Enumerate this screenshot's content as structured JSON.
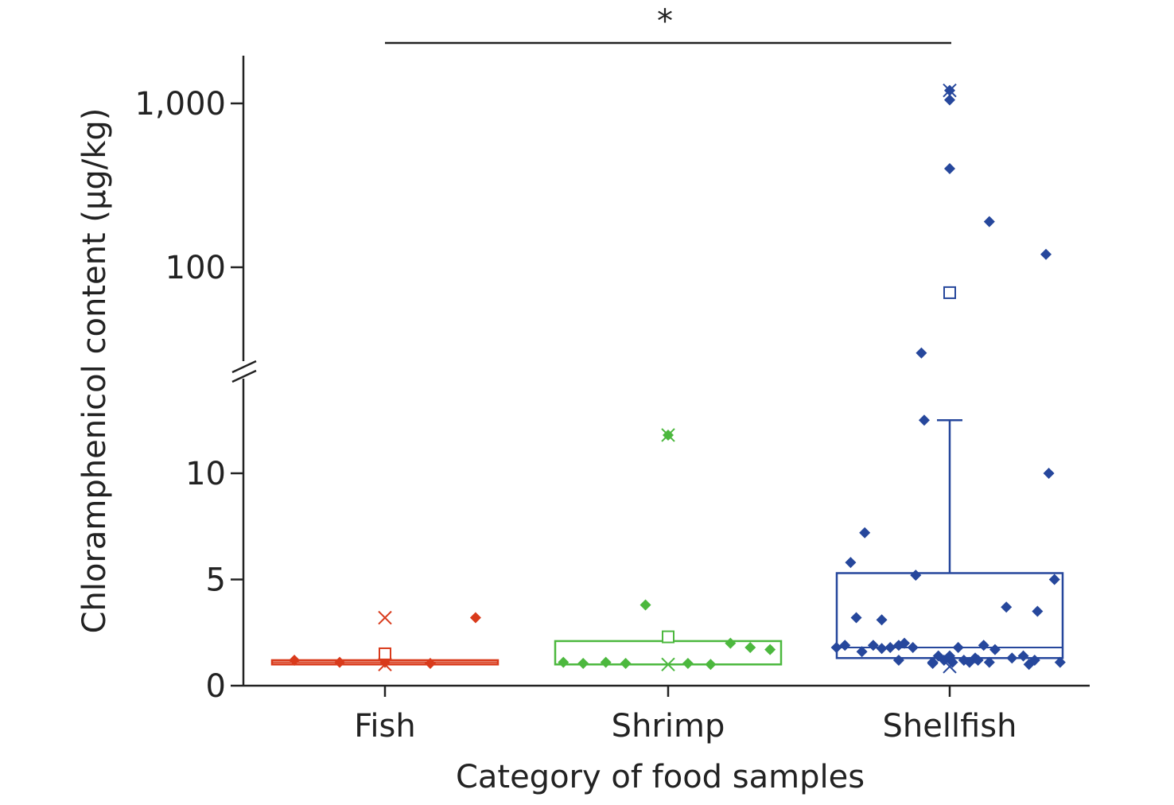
{
  "chart_data": {
    "type": "box-scatter",
    "xlabel": "Category of food samples",
    "ylabel": "Chloramphenicol content (µg/kg)",
    "y_scale": "broken axis: linear 0–14 below the break, log 10–2,000 above the break",
    "y_ticks": [
      {
        "value": 0,
        "label": "0"
      },
      {
        "value": 5,
        "label": "5"
      },
      {
        "value": 10,
        "label": "10"
      },
      {
        "value": 100,
        "label": "100"
      },
      {
        "value": 1000,
        "label": "1,000"
      }
    ],
    "significance": {
      "label": "*",
      "from": "Fish",
      "to": "Shellfish"
    },
    "grid": false,
    "legend": "none",
    "categories": [
      "Fish",
      "Shrimp",
      "Shellfish"
    ],
    "series": [
      {
        "category": "Fish",
        "color": "#d93a1b",
        "box": {
          "q1": 1.0,
          "median": 1.1,
          "q3": 1.2,
          "whisker_low": 1.0,
          "whisker_high": 1.2
        },
        "mean": 1.5,
        "extremes": [
          3.2,
          1.0
        ],
        "points": [
          {
            "dx": -0.32,
            "y": 1.2
          },
          {
            "dx": -0.16,
            "y": 1.1
          },
          {
            "dx": 0.0,
            "y": 1.1
          },
          {
            "dx": 0.16,
            "y": 1.05
          },
          {
            "dx": 0.32,
            "y": 3.2
          }
        ]
      },
      {
        "category": "Shrimp",
        "color": "#4cb83e",
        "box": {
          "q1": 1.0,
          "median": 1.0,
          "q3": 2.1,
          "whisker_low": 1.0,
          "whisker_high": 2.1
        },
        "mean": 2.3,
        "extremes": [
          11.8,
          1.0
        ],
        "points": [
          {
            "dx": -0.37,
            "y": 1.1
          },
          {
            "dx": -0.3,
            "y": 1.05
          },
          {
            "dx": -0.22,
            "y": 1.1
          },
          {
            "dx": -0.15,
            "y": 1.05
          },
          {
            "dx": -0.08,
            "y": 3.8
          },
          {
            "dx": 0.0,
            "y": 11.8
          },
          {
            "dx": 0.07,
            "y": 1.05
          },
          {
            "dx": 0.15,
            "y": 1.0
          },
          {
            "dx": 0.22,
            "y": 2.0
          },
          {
            "dx": 0.29,
            "y": 1.8
          },
          {
            "dx": 0.36,
            "y": 1.7
          }
        ]
      },
      {
        "category": "Shellfish",
        "color": "#26479c",
        "box": {
          "q1": 1.3,
          "median": 1.8,
          "q3": 5.3,
          "whisker_low": 1.3,
          "whisker_high": 12.5
        },
        "mean": 70,
        "extremes": [
          1200,
          0.9
        ],
        "points": [
          {
            "dx": 0.0,
            "y": 1200
          },
          {
            "dx": 0.0,
            "y": 1050
          },
          {
            "dx": 0.0,
            "y": 400
          },
          {
            "dx": 0.14,
            "y": 190
          },
          {
            "dx": 0.34,
            "y": 120
          },
          {
            "dx": -0.1,
            "y": 30
          },
          {
            "dx": -0.09,
            "y": 12.5
          },
          {
            "dx": 0.35,
            "y": 10.0
          },
          {
            "dx": -0.3,
            "y": 7.2
          },
          {
            "dx": -0.35,
            "y": 5.8
          },
          {
            "dx": -0.12,
            "y": 5.2
          },
          {
            "dx": 0.37,
            "y": 5.0
          },
          {
            "dx": -0.33,
            "y": 3.2
          },
          {
            "dx": -0.24,
            "y": 3.1
          },
          {
            "dx": 0.2,
            "y": 3.7
          },
          {
            "dx": 0.31,
            "y": 3.5
          },
          {
            "dx": -0.4,
            "y": 1.8
          },
          {
            "dx": -0.37,
            "y": 1.9
          },
          {
            "dx": -0.31,
            "y": 1.6
          },
          {
            "dx": -0.27,
            "y": 1.9
          },
          {
            "dx": -0.24,
            "y": 1.75
          },
          {
            "dx": -0.21,
            "y": 1.8
          },
          {
            "dx": -0.18,
            "y": 1.9
          },
          {
            "dx": -0.16,
            "y": 2.0
          },
          {
            "dx": -0.13,
            "y": 1.8
          },
          {
            "dx": -0.18,
            "y": 1.2
          },
          {
            "dx": -0.06,
            "y": 1.1
          },
          {
            "dx": -0.04,
            "y": 1.4
          },
          {
            "dx": -0.02,
            "y": 1.2
          },
          {
            "dx": 0.0,
            "y": 1.4
          },
          {
            "dx": 0.01,
            "y": 1.1
          },
          {
            "dx": 0.03,
            "y": 1.8
          },
          {
            "dx": 0.05,
            "y": 1.2
          },
          {
            "dx": 0.07,
            "y": 1.1
          },
          {
            "dx": 0.09,
            "y": 1.3
          },
          {
            "dx": 0.1,
            "y": 1.2
          },
          {
            "dx": 0.12,
            "y": 1.9
          },
          {
            "dx": 0.16,
            "y": 1.7
          },
          {
            "dx": 0.14,
            "y": 1.1
          },
          {
            "dx": 0.22,
            "y": 1.3
          },
          {
            "dx": 0.26,
            "y": 1.4
          },
          {
            "dx": 0.28,
            "y": 1.0
          },
          {
            "dx": 0.3,
            "y": 1.2
          },
          {
            "dx": -0.06,
            "y": 1.05
          },
          {
            "dx": 0.39,
            "y": 1.1
          }
        ]
      }
    ]
  }
}
